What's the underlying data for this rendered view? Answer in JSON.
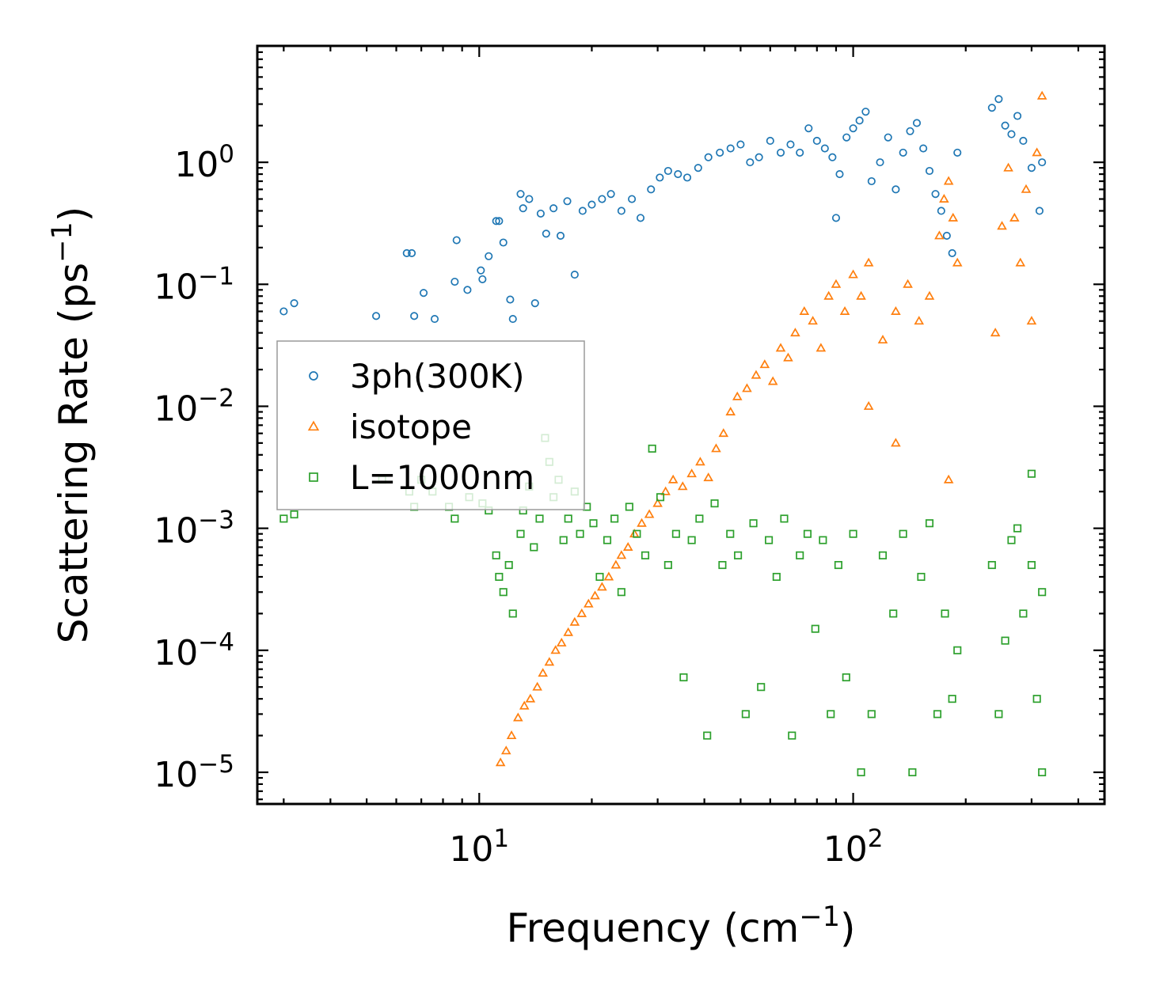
{
  "chart_data": {
    "type": "scatter",
    "title": "",
    "xlabel": "Frequency (cm",
    "xlabel_sup": "−1",
    "xlabel_close": ")",
    "ylabel": "Scattering Rate (ps",
    "ylabel_sup": "−1",
    "ylabel_close": ")",
    "xscale": "log",
    "yscale": "log",
    "xlim": [
      2.55,
      470
    ],
    "ylim": [
      5.5e-06,
      9.0
    ],
    "grid": false,
    "legend_position": "center-left",
    "x_ticks": [
      {
        "value": 10,
        "base": "10",
        "exp": "1"
      },
      {
        "value": 100,
        "base": "10",
        "exp": "2"
      }
    ],
    "y_ticks": [
      {
        "value": 1,
        "base": "10",
        "exp": "0"
      },
      {
        "value": 0.1,
        "base": "10",
        "exp": "−1"
      },
      {
        "value": 0.01,
        "base": "10",
        "exp": "−2"
      },
      {
        "value": 0.001,
        "base": "10",
        "exp": "−3"
      },
      {
        "value": 0.0001,
        "base": "10",
        "exp": "−4"
      },
      {
        "value": 1e-05,
        "base": "10",
        "exp": "−5"
      }
    ],
    "series": [
      {
        "name": "3ph(300K)",
        "marker": "circle",
        "color": "#1f77b4",
        "x": [
          3.0,
          3.2,
          5.3,
          6.4,
          6.6,
          6.7,
          7.1,
          7.6,
          8.6,
          8.7,
          9.3,
          10.1,
          10.2,
          10.6,
          11.1,
          11.3,
          11.6,
          12.1,
          12.3,
          12.9,
          13.1,
          13.6,
          14.1,
          14.6,
          15.1,
          15.8,
          16.5,
          17.2,
          18.0,
          18.9,
          20.0,
          21.3,
          22.5,
          24.0,
          25.6,
          27.0,
          28.8,
          30.4,
          32.0,
          34.0,
          36.0,
          38.5,
          41.0,
          44.0,
          47.0,
          50.0,
          53.0,
          56.0,
          60.0,
          64.0,
          68.0,
          72.0,
          76.0,
          80.0,
          84.0,
          88.0,
          90.0,
          92.0,
          96.0,
          100.0,
          104.0,
          108.0,
          112.0,
          118.0,
          124.0,
          130.0,
          136.0,
          142.0,
          148.0,
          154.0,
          160.0,
          166.0,
          172.0,
          178.0,
          184.0,
          190.0,
          235.0,
          245.0,
          255.0,
          265.0,
          275.0,
          285.0,
          300.0,
          315.0,
          320.0
        ],
        "y": [
          0.06,
          0.07,
          0.055,
          0.18,
          0.18,
          0.055,
          0.085,
          0.052,
          0.105,
          0.23,
          0.09,
          0.13,
          0.11,
          0.17,
          0.33,
          0.33,
          0.22,
          0.075,
          0.052,
          0.55,
          0.42,
          0.5,
          0.07,
          0.38,
          0.26,
          0.42,
          0.25,
          0.48,
          0.12,
          0.4,
          0.45,
          0.5,
          0.55,
          0.4,
          0.5,
          0.35,
          0.6,
          0.75,
          0.85,
          0.8,
          0.75,
          0.9,
          1.1,
          1.2,
          1.3,
          1.4,
          1.0,
          1.1,
          1.5,
          1.2,
          1.4,
          1.2,
          1.9,
          1.5,
          1.3,
          1.1,
          0.35,
          0.8,
          1.6,
          1.9,
          2.2,
          2.6,
          0.7,
          1.0,
          1.6,
          0.6,
          1.2,
          1.8,
          2.1,
          1.3,
          0.85,
          0.55,
          0.4,
          0.25,
          0.18,
          1.2,
          2.8,
          3.3,
          2.0,
          1.7,
          2.4,
          1.5,
          0.9,
          0.4,
          1.0
        ]
      },
      {
        "name": "isotope",
        "marker": "triangle",
        "color": "#ff7f0e",
        "x": [
          11.4,
          11.8,
          12.2,
          12.7,
          13.2,
          13.7,
          14.3,
          14.8,
          15.4,
          16.0,
          16.6,
          17.3,
          18.0,
          18.8,
          19.6,
          20.4,
          21.3,
          22.2,
          23.2,
          24.0,
          25.0,
          26.0,
          27.2,
          28.5,
          30.0,
          31.5,
          33.0,
          35.0,
          37.0,
          39.0,
          41.0,
          43.0,
          45.0,
          47.0,
          49.0,
          52.0,
          55.0,
          58.0,
          61.0,
          64.0,
          67.0,
          70.0,
          74.0,
          78.0,
          82.0,
          86.0,
          90.0,
          95.0,
          100.0,
          105.0,
          110.0,
          120.0,
          130.0,
          140.0,
          150.0,
          160.0,
          170.0,
          175.0,
          180.0,
          185.0,
          190.0,
          240.0,
          250.0,
          260.0,
          270.0,
          280.0,
          290.0,
          300.0,
          310.0,
          320.0,
          180.0,
          110.0,
          130.0
        ],
        "y": [
          1.2e-05,
          1.5e-05,
          2e-05,
          2.8e-05,
          3.5e-05,
          4e-05,
          5e-05,
          6.5e-05,
          8e-05,
          0.0001,
          0.000115,
          0.00014,
          0.00017,
          0.0002,
          0.00024,
          0.00028,
          0.00033,
          0.0004,
          0.0005,
          0.0006,
          0.0007,
          0.0009,
          0.0011,
          0.0013,
          0.0016,
          0.002,
          0.0025,
          0.0022,
          0.0028,
          0.0035,
          0.0026,
          0.0045,
          0.006,
          0.009,
          0.012,
          0.014,
          0.018,
          0.022,
          0.016,
          0.03,
          0.025,
          0.04,
          0.06,
          0.05,
          0.03,
          0.08,
          0.1,
          0.06,
          0.12,
          0.08,
          0.15,
          0.035,
          0.06,
          0.1,
          0.05,
          0.08,
          0.25,
          0.5,
          0.7,
          0.35,
          0.15,
          0.04,
          0.3,
          0.9,
          0.35,
          0.15,
          0.6,
          0.05,
          1.2,
          3.5,
          0.0025,
          0.01,
          0.005
        ]
      },
      {
        "name": "L=1000nm",
        "marker": "square",
        "color": "#2ca02c",
        "x": [
          3.0,
          3.2,
          5.5,
          6.5,
          6.7,
          7.0,
          7.5,
          8.3,
          8.6,
          9.4,
          10.2,
          10.6,
          11.1,
          11.3,
          11.6,
          12.0,
          12.3,
          12.9,
          13.1,
          13.6,
          14.0,
          14.5,
          15.0,
          15.4,
          15.8,
          16.3,
          16.8,
          17.3,
          18.0,
          18.6,
          19.4,
          20.2,
          21.0,
          22.0,
          23.0,
          24.0,
          25.2,
          26.4,
          27.8,
          29.0,
          30.5,
          32.0,
          33.6,
          35.2,
          37.0,
          38.8,
          40.7,
          42.6,
          44.7,
          46.9,
          49.2,
          51.6,
          54.1,
          56.7,
          59.5,
          62.4,
          65.4,
          68.6,
          72.0,
          75.5,
          79.2,
          83.0,
          87.1,
          91.3,
          95.8,
          100.0,
          105.0,
          112.0,
          120.0,
          128.0,
          136.0,
          144.0,
          152.0,
          160.0,
          168.0,
          176.0,
          184.0,
          190.0,
          235.0,
          245.0,
          255.0,
          265.0,
          275.0,
          285.0,
          300.0,
          310.0,
          320.0,
          320.0,
          300.0
        ],
        "y": [
          0.0012,
          0.0013,
          0.0025,
          0.002,
          0.0015,
          0.0025,
          0.002,
          0.0015,
          0.0012,
          0.0018,
          0.0016,
          0.0014,
          0.0006,
          0.0004,
          0.0003,
          0.0005,
          0.0002,
          0.0009,
          0.0014,
          0.0022,
          0.0007,
          0.0012,
          0.0055,
          0.0035,
          0.0018,
          0.0025,
          0.0008,
          0.0012,
          0.002,
          0.0009,
          0.0015,
          0.0011,
          0.0004,
          0.0008,
          0.0012,
          0.0003,
          0.0015,
          0.0009,
          0.0006,
          0.0045,
          0.0018,
          0.0005,
          0.0009,
          6e-05,
          0.0008,
          0.0012,
          2e-05,
          0.0016,
          0.0005,
          0.0009,
          0.0006,
          3e-05,
          0.0011,
          5e-05,
          0.0008,
          0.0004,
          0.0012,
          2e-05,
          0.0006,
          0.0009,
          0.00015,
          0.0008,
          3e-05,
          0.0005,
          6e-05,
          0.0009,
          1e-05,
          3e-05,
          0.0006,
          0.0002,
          0.0009,
          1e-05,
          0.0004,
          0.0011,
          3e-05,
          0.0002,
          4e-05,
          0.0001,
          0.0005,
          3e-05,
          0.00012,
          0.0008,
          0.001,
          0.0002,
          0.0005,
          4e-05,
          0.0003,
          1e-05,
          0.0028
        ]
      }
    ]
  }
}
